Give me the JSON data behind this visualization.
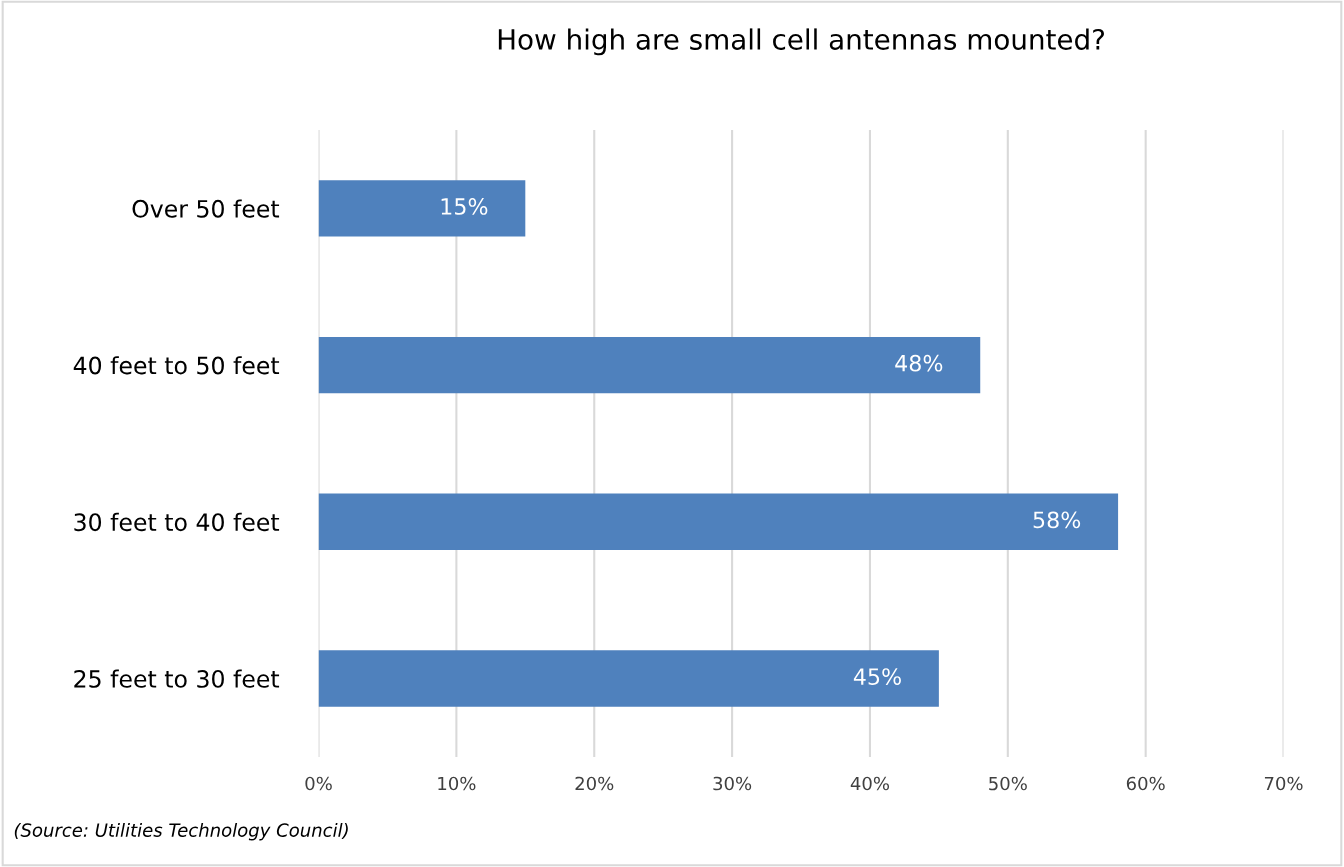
{
  "chart_data": {
    "type": "bar",
    "orientation": "horizontal",
    "title": "How high are small cell antennas mounted?",
    "categories": [
      "Over 50 feet",
      "40 feet to 50 feet",
      "30 feet to 40 feet",
      "25 feet to 30 feet"
    ],
    "values": [
      15,
      48,
      58,
      45
    ],
    "value_labels": [
      "15%",
      "48%",
      "58%",
      "45%"
    ],
    "color": "#4f81bd",
    "xlim": [
      0,
      70
    ],
    "xticks": [
      {
        "value": 0,
        "label": "0%"
      },
      {
        "value": 10,
        "label": "10%"
      },
      {
        "value": 20,
        "label": "20%"
      },
      {
        "value": 30,
        "label": "30%"
      },
      {
        "value": 40,
        "label": "40%"
      },
      {
        "value": 50,
        "label": "50%"
      },
      {
        "value": 60,
        "label": "60%"
      },
      {
        "value": 70,
        "label": "70%"
      }
    ],
    "grid": "x",
    "legend": false,
    "annotations": [
      "(Source: Utilities Technology Council)"
    ]
  }
}
